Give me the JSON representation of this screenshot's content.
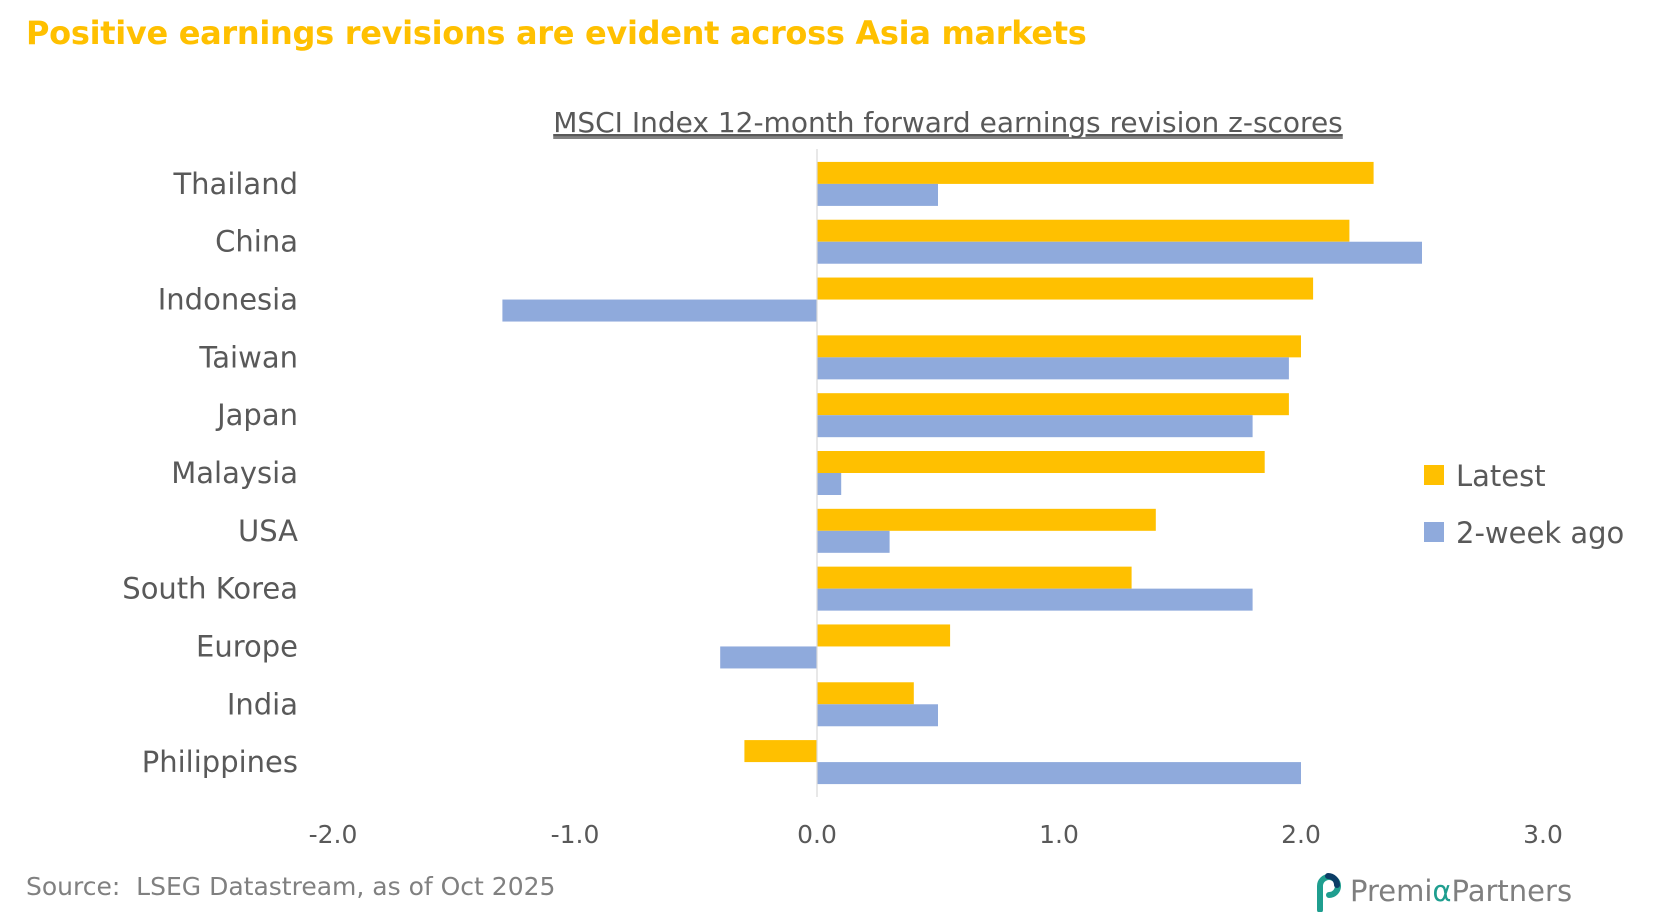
{
  "headline": "Positive earnings revisions are evident across Asia markets",
  "source": "Source:  LSEG Datastream, as of Oct 2025",
  "brand": {
    "name_part1": "Premi",
    "name_alpha": "α",
    "name_part2": " Partners",
    "icon": "premia-logo-icon"
  },
  "colors": {
    "headline": "#FFC000",
    "latest": "#FFC000",
    "two_week": "#8FAADC",
    "text": "#595959",
    "muted": "#808080",
    "brand_accent": "#1f9e8f"
  },
  "chart_data": {
    "type": "bar",
    "orientation": "horizontal",
    "title": "MSCI Index 12-month forward earnings revision z-scores",
    "categories": [
      "Thailand",
      "China",
      "Indonesia",
      "Taiwan",
      "Japan",
      "Malaysia",
      "USA",
      "South Korea",
      "Europe",
      "India",
      "Philippines"
    ],
    "series": [
      {
        "name": "Latest",
        "values": [
          2.3,
          2.2,
          2.05,
          2.0,
          1.95,
          1.85,
          1.4,
          1.3,
          0.55,
          0.4,
          -0.3
        ]
      },
      {
        "name": "2-week ago",
        "values": [
          0.5,
          2.5,
          -1.3,
          1.95,
          1.8,
          0.1,
          0.3,
          1.8,
          -0.4,
          0.5,
          2.0
        ]
      }
    ],
    "xlim": [
      -2.0,
      3.0
    ],
    "xticks": [
      -2.0,
      -1.0,
      0.0,
      1.0,
      2.0,
      3.0
    ],
    "xtick_labels": [
      "-2.0",
      "-1.0",
      "0.0",
      "1.0",
      "2.0",
      "3.0"
    ],
    "xlabel": "",
    "ylabel": "",
    "grid": false,
    "legend_position": "right"
  }
}
